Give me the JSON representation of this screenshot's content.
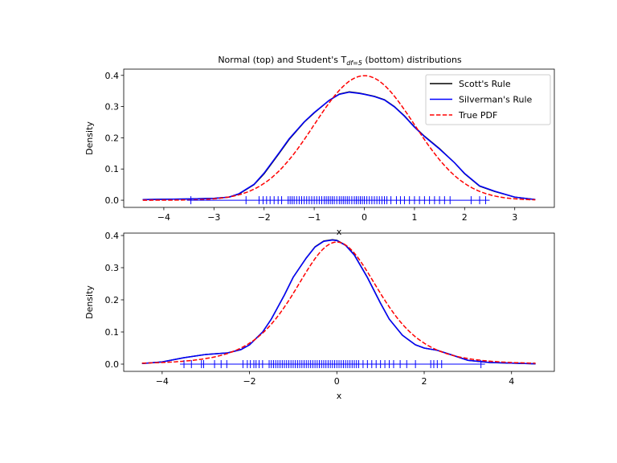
{
  "chart_data": [
    {
      "type": "line",
      "title": "Normal (top) and Student's T",
      "title_sub": "df=5",
      "title_end": " (bottom) distributions",
      "xlabel": "x",
      "ylabel": "Density",
      "xlim": [
        -4.8,
        3.79
      ],
      "ylim": [
        -0.023,
        0.42
      ],
      "xticks": [
        -4,
        -3,
        -2,
        -1,
        0,
        1,
        2,
        3
      ],
      "yticks": [
        0.0,
        0.1,
        0.2,
        0.3,
        0.4
      ],
      "ytick_labels": [
        "0.0",
        "0.1",
        "0.2",
        "0.3",
        "0.4"
      ],
      "legend": {
        "placement": "top-right",
        "entries": [
          "Scott's Rule",
          "Silverman's Rule",
          "True PDF"
        ]
      },
      "series": [
        {
          "name": "Scott's Rule",
          "color": "#000000",
          "style": "solid",
          "x": [
            -4.42,
            -3.5,
            -3,
            -2.7,
            -2.5,
            -2.2,
            -2,
            -1.7,
            -1.5,
            -1.2,
            -1,
            -0.7,
            -0.5,
            -0.3,
            -0.1,
            0,
            0.2,
            0.4,
            0.6,
            0.8,
            1,
            1.2,
            1.5,
            1.8,
            2,
            2.3,
            2.6,
            3,
            3.41
          ],
          "y": [
            0.002,
            0.004,
            0.006,
            0.01,
            0.02,
            0.05,
            0.085,
            0.15,
            0.195,
            0.25,
            0.28,
            0.32,
            0.34,
            0.347,
            0.343,
            0.34,
            0.333,
            0.322,
            0.3,
            0.27,
            0.235,
            0.205,
            0.165,
            0.12,
            0.085,
            0.045,
            0.028,
            0.01,
            0.002
          ]
        },
        {
          "name": "Silverman's Rule",
          "color": "#0000ff",
          "style": "solid",
          "x": [
            -4.42,
            -3.5,
            -3,
            -2.7,
            -2.5,
            -2.2,
            -2,
            -1.7,
            -1.5,
            -1.2,
            -1,
            -0.7,
            -0.5,
            -0.3,
            -0.1,
            0,
            0.2,
            0.4,
            0.6,
            0.8,
            1,
            1.2,
            1.5,
            1.8,
            2,
            2.3,
            2.6,
            3,
            3.41
          ],
          "y": [
            0.002,
            0.004,
            0.006,
            0.01,
            0.021,
            0.051,
            0.087,
            0.152,
            0.197,
            0.251,
            0.281,
            0.32,
            0.339,
            0.346,
            0.342,
            0.339,
            0.332,
            0.321,
            0.299,
            0.269,
            0.234,
            0.204,
            0.164,
            0.12,
            0.086,
            0.046,
            0.029,
            0.01,
            0.002
          ]
        },
        {
          "name": "True PDF",
          "color": "#ff0000",
          "style": "dashed",
          "dist": "normal",
          "x_range": [
            -4.42,
            3.41
          ]
        }
      ],
      "rug": [
        -3.46,
        -2.36,
        -2.1,
        -2.02,
        -1.95,
        -1.88,
        -1.8,
        -1.72,
        -1.65,
        -1.52,
        -1.48,
        -1.44,
        -1.4,
        -1.35,
        -1.3,
        -1.25,
        -1.2,
        -1.15,
        -1.1,
        -1.05,
        -1.0,
        -0.95,
        -0.9,
        -0.85,
        -0.8,
        -0.76,
        -0.72,
        -0.68,
        -0.64,
        -0.6,
        -0.55,
        -0.5,
        -0.46,
        -0.42,
        -0.38,
        -0.34,
        -0.3,
        -0.25,
        -0.2,
        -0.16,
        -0.12,
        -0.08,
        -0.04,
        0.0,
        0.05,
        0.1,
        0.15,
        0.2,
        0.25,
        0.3,
        0.35,
        0.4,
        0.45,
        0.53,
        0.64,
        0.72,
        0.8,
        0.9,
        1.0,
        1.1,
        1.2,
        1.3,
        1.4,
        1.5,
        1.6,
        1.71,
        2.13,
        2.3,
        2.42
      ]
    },
    {
      "type": "line",
      "xlabel": "x",
      "ylabel": "Density",
      "xlim": [
        -4.88,
        4.98
      ],
      "ylim": [
        -0.0225,
        0.4075
      ],
      "xticks": [
        -4,
        -2,
        0,
        2,
        4
      ],
      "yticks": [
        0.0,
        0.1,
        0.2,
        0.3,
        0.4
      ],
      "ytick_labels": [
        "0.0",
        "0.1",
        "0.2",
        "0.3",
        "0.4"
      ],
      "series": [
        {
          "name": "Scott's Rule",
          "color": "#000000",
          "style": "solid",
          "x": [
            -4.46,
            -4,
            -3.5,
            -3,
            -2.5,
            -2.2,
            -2,
            -1.7,
            -1.5,
            -1.2,
            -1,
            -0.7,
            -0.5,
            -0.3,
            -0.1,
            0,
            0.2,
            0.4,
            0.7,
            1,
            1.2,
            1.5,
            1.8,
            2,
            2.3,
            2.6,
            3,
            3.5,
            4,
            4.55
          ],
          "y": [
            0.002,
            0.007,
            0.02,
            0.03,
            0.035,
            0.045,
            0.06,
            0.1,
            0.14,
            0.215,
            0.27,
            0.33,
            0.365,
            0.383,
            0.387,
            0.385,
            0.37,
            0.34,
            0.27,
            0.19,
            0.14,
            0.09,
            0.06,
            0.05,
            0.043,
            0.03,
            0.012,
            0.005,
            0.003,
            0.001
          ]
        },
        {
          "name": "Silverman's Rule",
          "color": "#0000ff",
          "style": "solid",
          "x": [
            -4.46,
            -4,
            -3.5,
            -3,
            -2.5,
            -2.2,
            -2,
            -1.7,
            -1.5,
            -1.2,
            -1,
            -0.7,
            -0.5,
            -0.3,
            -0.1,
            0,
            0.2,
            0.4,
            0.7,
            1,
            1.2,
            1.5,
            1.8,
            2,
            2.3,
            2.6,
            3,
            3.5,
            4,
            4.55
          ],
          "y": [
            0.002,
            0.007,
            0.02,
            0.03,
            0.035,
            0.045,
            0.06,
            0.1,
            0.14,
            0.215,
            0.27,
            0.33,
            0.364,
            0.382,
            0.386,
            0.384,
            0.369,
            0.339,
            0.269,
            0.189,
            0.14,
            0.09,
            0.06,
            0.05,
            0.043,
            0.03,
            0.012,
            0.005,
            0.003,
            0.001
          ]
        },
        {
          "name": "True PDF",
          "color": "#ff0000",
          "style": "dashed",
          "dist": "t",
          "df": 5,
          "x_range": [
            -4.46,
            4.55
          ]
        }
      ],
      "rug": [
        -3.5,
        -3.33,
        -3.1,
        -3.05,
        -2.8,
        -2.65,
        -2.52,
        -2.15,
        -2.05,
        -1.98,
        -1.9,
        -1.85,
        -1.78,
        -1.7,
        -1.55,
        -1.5,
        -1.45,
        -1.4,
        -1.35,
        -1.3,
        -1.25,
        -1.2,
        -1.15,
        -1.1,
        -1.05,
        -1.0,
        -0.95,
        -0.9,
        -0.85,
        -0.8,
        -0.75,
        -0.7,
        -0.65,
        -0.6,
        -0.55,
        -0.5,
        -0.45,
        -0.4,
        -0.35,
        -0.3,
        -0.25,
        -0.2,
        -0.15,
        -0.1,
        -0.05,
        0.0,
        0.05,
        0.1,
        0.15,
        0.2,
        0.25,
        0.3,
        0.35,
        0.4,
        0.45,
        0.5,
        0.6,
        0.7,
        0.8,
        0.9,
        1.0,
        1.1,
        1.2,
        1.3,
        1.45,
        1.6,
        1.8,
        2.15,
        2.22,
        2.3,
        2.4,
        3.3
      ]
    }
  ]
}
